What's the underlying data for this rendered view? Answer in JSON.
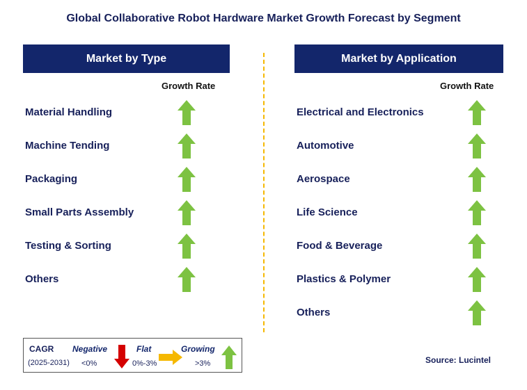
{
  "title": "Global Collaborative Robot Hardware Market Growth Forecast by Segment",
  "colors": {
    "header_bg": "#13266b",
    "text": "#17205a",
    "growing": "#7dc242",
    "negative": "#d40000",
    "flat": "#f5b800",
    "divider": "#f5b800"
  },
  "chart_data": [
    {
      "type": "table",
      "title": "Market by Type",
      "column_header": "Growth Rate",
      "rows": [
        {
          "segment": "Material Handling",
          "growth": "Growing"
        },
        {
          "segment": "Machine Tending",
          "growth": "Growing"
        },
        {
          "segment": "Packaging",
          "growth": "Growing"
        },
        {
          "segment": "Small Parts Assembly",
          "growth": "Growing"
        },
        {
          "segment": "Testing & Sorting",
          "growth": "Growing"
        },
        {
          "segment": "Others",
          "growth": "Growing"
        }
      ]
    },
    {
      "type": "table",
      "title": "Market by Application",
      "column_header": "Growth Rate",
      "rows": [
        {
          "segment": "Electrical and Electronics",
          "growth": "Growing"
        },
        {
          "segment": "Automotive",
          "growth": "Growing"
        },
        {
          "segment": "Aerospace",
          "growth": "Growing"
        },
        {
          "segment": "Life Science",
          "growth": "Growing"
        },
        {
          "segment": "Food & Beverage",
          "growth": "Growing"
        },
        {
          "segment": "Plastics & Polymer",
          "growth": "Growing"
        },
        {
          "segment": "Others",
          "growth": "Growing"
        }
      ]
    }
  ],
  "legend": {
    "cagr_label": "CAGR",
    "period": "(2025-2031)",
    "negative": {
      "label": "Negative",
      "range": "<0%",
      "icon": "down-arrow-icon"
    },
    "flat": {
      "label": "Flat",
      "range": "0%-3%",
      "icon": "right-arrow-icon"
    },
    "growing": {
      "label": "Growing",
      "range": ">3%",
      "icon": "up-arrow-icon"
    }
  },
  "source": "Source: Lucintel"
}
